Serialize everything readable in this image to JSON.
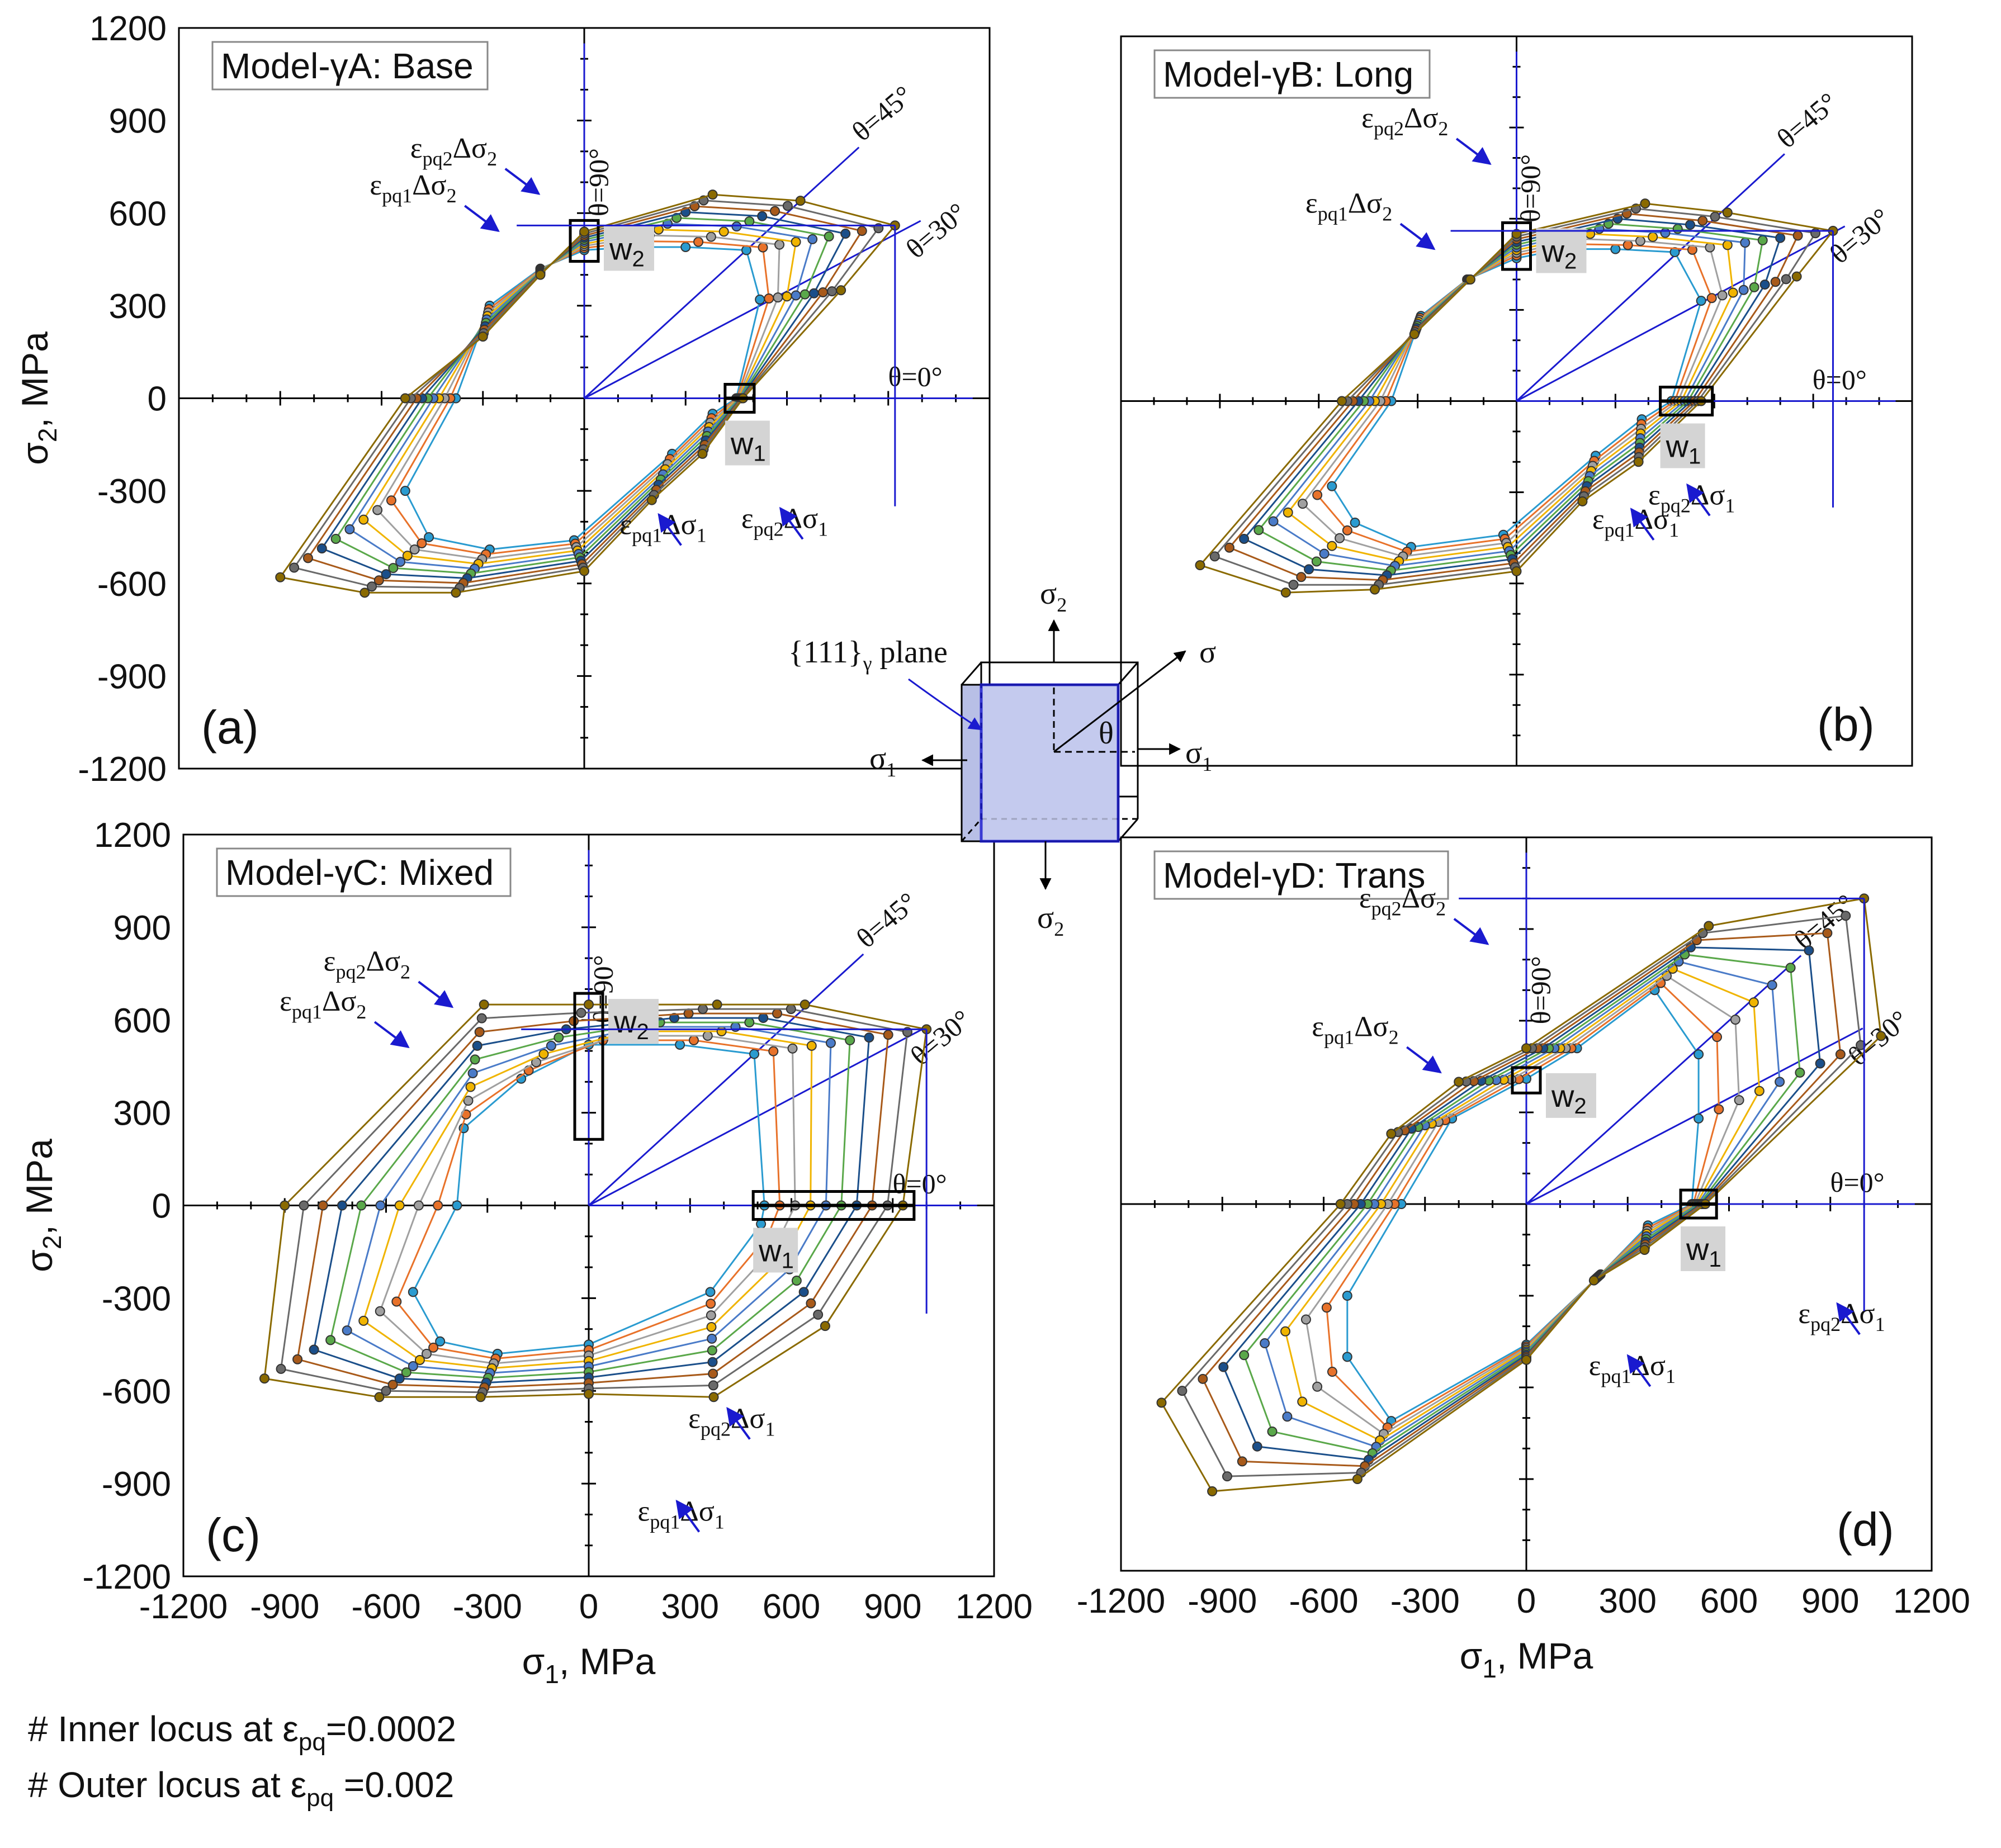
{
  "figure": {
    "note_inner_prefix": "# Inner locus at ε",
    "note_inner_sub": "pq",
    "note_inner_suffix": "=0.0002",
    "note_outer_prefix": "# Outer locus at ε",
    "note_outer_sub": "pq",
    "note_outer_suffix": " =0.002",
    "cube_label": "{111}",
    "cube_label_sub": "γ",
    "cube_label_tail": " plane",
    "sigma1": "σ",
    "sigma1_sub": "1",
    "sigma2": "σ",
    "sigma2_sub": "2",
    "sigma": "σ",
    "theta": "θ"
  },
  "colors": {
    "series": [
      "#2a9bd0",
      "#e8722a",
      "#a0a0a0",
      "#f0b400",
      "#4a7bc8",
      "#5aa84a",
      "#1b4f8a",
      "#a85a1a",
      "#6a6a6a",
      "#8a6a00"
    ],
    "guide": "#1a1acf",
    "wbox": "#d4d4d4"
  },
  "chart_data": [
    {
      "panel": "a",
      "type": "scatter",
      "title": "Model-γA: Base",
      "panel_label": "(a)",
      "xlabel": "σ1, MPa",
      "ylabel": "σ2, MPa",
      "xlim": [
        -1200,
        1200
      ],
      "ylim": [
        -1200,
        1200
      ],
      "yticks": [
        "1200",
        "900",
        "600",
        "300",
        "0",
        "-300",
        "-600",
        "-900",
        "-1200"
      ],
      "angles": [
        "θ=0°",
        "θ=30°",
        "θ=45°",
        "θ=90°"
      ],
      "annotations": [
        "εpq2Δσ2",
        "εpq1Δσ2",
        "εpq1Δσ1",
        "εpq2Δσ1",
        "w1",
        "w2"
      ],
      "series_count": 10,
      "inner_locus": [
        [
          -380,
          0
        ],
        [
          -530,
          -300
        ],
        [
          -460,
          -450
        ],
        [
          -280,
          -490
        ],
        [
          -30,
          -460
        ],
        [
          260,
          -180
        ],
        [
          380,
          -50
        ],
        [
          450,
          0
        ],
        [
          520,
          320
        ],
        [
          480,
          480
        ],
        [
          300,
          490
        ],
        [
          140,
          490
        ],
        [
          0,
          480
        ],
        [
          -130,
          420
        ],
        [
          -280,
          300
        ]
      ],
      "outer_locus": [
        [
          -530,
          0
        ],
        [
          -900,
          -580
        ],
        [
          -650,
          -630
        ],
        [
          -380,
          -630
        ],
        [
          0,
          -560
        ],
        [
          200,
          -330
        ],
        [
          350,
          -180
        ],
        [
          470,
          0
        ],
        [
          760,
          350
        ],
        [
          920,
          560
        ],
        [
          640,
          640
        ],
        [
          380,
          660
        ],
        [
          0,
          540
        ],
        [
          -130,
          400
        ],
        [
          -300,
          200
        ]
      ]
    },
    {
      "panel": "b",
      "type": "scatter",
      "title": "Model-γB: Long",
      "panel_label": "(b)",
      "xlabel": "σ1, MPa",
      "ylabel": "σ2, MPa",
      "xlim": [
        -1200,
        1200
      ],
      "ylim": [
        -1200,
        1200
      ],
      "yticks": [
        "1200",
        "900",
        "600",
        "300",
        "0",
        "-300",
        "-600",
        "-900",
        "-1200"
      ],
      "angles": [
        "θ=0°",
        "θ=30°",
        "θ=45°",
        "θ=90°"
      ],
      "annotations": [
        "εpq2Δσ2",
        "εpq1Δσ2",
        "εpq1Δσ1",
        "εpq2Δσ1",
        "w1",
        "w2"
      ],
      "series_count": 10,
      "inner_locus": [
        [
          -380,
          0
        ],
        [
          -560,
          -280
        ],
        [
          -490,
          -400
        ],
        [
          -320,
          -480
        ],
        [
          -40,
          -440
        ],
        [
          240,
          -180
        ],
        [
          380,
          -60
        ],
        [
          470,
          0
        ],
        [
          560,
          330
        ],
        [
          480,
          490
        ],
        [
          300,
          500
        ],
        [
          140,
          500
        ],
        [
          0,
          470
        ],
        [
          -150,
          400
        ],
        [
          -290,
          280
        ]
      ],
      "outer_locus": [
        [
          -530,
          0
        ],
        [
          -960,
          -540
        ],
        [
          -700,
          -630
        ],
        [
          -430,
          -620
        ],
        [
          0,
          -560
        ],
        [
          200,
          -330
        ],
        [
          370,
          -200
        ],
        [
          560,
          0
        ],
        [
          850,
          410
        ],
        [
          960,
          560
        ],
        [
          640,
          620
        ],
        [
          390,
          650
        ],
        [
          0,
          550
        ],
        [
          -140,
          400
        ],
        [
          -310,
          220
        ]
      ]
    },
    {
      "panel": "c",
      "type": "scatter",
      "title": "Model-γC: Mixed",
      "panel_label": "(c)",
      "xlabel": "σ1, MPa",
      "ylabel": "σ2, MPa",
      "xlim": [
        -1200,
        1200
      ],
      "ylim": [
        -1200,
        1200
      ],
      "yticks": [
        "1200",
        "900",
        "600",
        "300",
        "0",
        "-300",
        "-600",
        "-900",
        "-1200"
      ],
      "xticks": [
        "-1200",
        "-900",
        "-600",
        "-300",
        "0",
        "300",
        "600",
        "900",
        "1200"
      ],
      "angles": [
        "θ=0°",
        "θ=30°",
        "θ=45°",
        "θ=90°"
      ],
      "annotations": [
        "εpq2Δσ2",
        "εpq1Δσ2",
        "εpq1Δσ1",
        "εpq2Δσ1",
        "w1",
        "w2"
      ],
      "series_count": 10,
      "inner_locus": [
        [
          -390,
          0
        ],
        [
          -520,
          -280
        ],
        [
          -440,
          -440
        ],
        [
          -270,
          -480
        ],
        [
          0,
          -450
        ],
        [
          360,
          -280
        ],
        [
          510,
          -60
        ],
        [
          520,
          0
        ],
        [
          490,
          490
        ],
        [
          270,
          520
        ],
        [
          0,
          520
        ],
        [
          -200,
          410
        ],
        [
          -370,
          250
        ]
      ],
      "outer_locus": [
        [
          -900,
          0
        ],
        [
          -960,
          -560
        ],
        [
          -620,
          -620
        ],
        [
          -320,
          -620
        ],
        [
          0,
          -610
        ],
        [
          370,
          -620
        ],
        [
          700,
          -390
        ],
        [
          930,
          0
        ],
        [
          1000,
          570
        ],
        [
          640,
          650
        ],
        [
          380,
          650
        ],
        [
          0,
          650
        ],
        [
          -310,
          650
        ],
        [
          -700,
          420
        ],
        [
          -850,
          0
        ]
      ]
    },
    {
      "panel": "d",
      "type": "scatter",
      "title": "Model-γD: Trans",
      "panel_label": "(d)",
      "xlabel": "σ1, MPa",
      "ylabel": "σ2, MPa",
      "xlim": [
        -1200,
        1200
      ],
      "ylim": [
        -1200,
        1200
      ],
      "yticks": [
        "1200",
        "900",
        "600",
        "300",
        "0",
        "-300",
        "-600",
        "-900",
        "-1200"
      ],
      "xticks": [
        "-1200",
        "-900",
        "-600",
        "-300",
        "0",
        "300",
        "600",
        "900",
        "1200"
      ],
      "angles": [
        "θ=0°",
        "θ=30°",
        "θ=45°",
        "θ=90°"
      ],
      "annotations": [
        "εpq2Δσ2",
        "εpq1Δσ2",
        "εpq1Δσ1",
        "εpq2Δσ1",
        "w1",
        "w2"
      ],
      "series_count": 10,
      "inner_locus": [
        [
          -370,
          0
        ],
        [
          -530,
          -300
        ],
        [
          -530,
          -500
        ],
        [
          -400,
          -710
        ],
        [
          0,
          -460
        ],
        [
          220,
          -230
        ],
        [
          360,
          -70
        ],
        [
          490,
          0
        ],
        [
          510,
          280
        ],
        [
          510,
          490
        ],
        [
          380,
          700
        ],
        [
          150,
          510
        ],
        [
          0,
          410
        ],
        [
          -220,
          280
        ]
      ],
      "outer_locus": [
        [
          -550,
          0
        ],
        [
          -1080,
          -650
        ],
        [
          -930,
          -940
        ],
        [
          -500,
          -900
        ],
        [
          0,
          -510
        ],
        [
          200,
          -250
        ],
        [
          350,
          -150
        ],
        [
          530,
          0
        ],
        [
          1050,
          550
        ],
        [
          1000,
          1000
        ],
        [
          540,
          910
        ],
        [
          0,
          510
        ],
        [
          -200,
          400
        ],
        [
          -400,
          230
        ]
      ]
    }
  ]
}
